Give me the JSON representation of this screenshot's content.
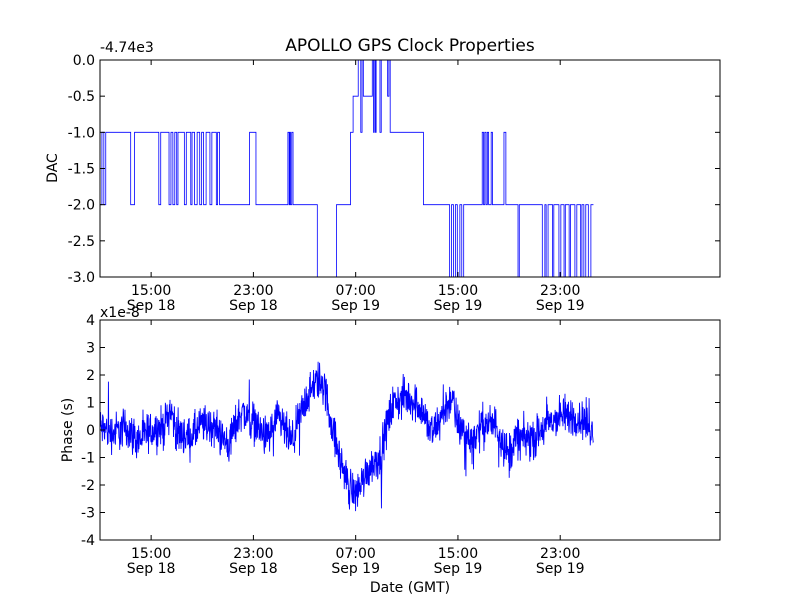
{
  "figure": {
    "title": "APOLLO GPS Clock Properties",
    "xlabel": "Date (GMT)"
  },
  "chart_data": [
    {
      "type": "line",
      "ylabel": "DAC",
      "offset_label": "-4.74e3",
      "xlim": [
        11.0,
        59.5
      ],
      "ylim": [
        -3.0,
        0.0
      ],
      "xticks": [
        {
          "x": 15,
          "time": "15:00",
          "date": "Sep 18"
        },
        {
          "x": 23,
          "time": "23:00",
          "date": "Sep 18"
        },
        {
          "x": 31,
          "time": "07:00",
          "date": "Sep 19"
        },
        {
          "x": 39,
          "time": "15:00",
          "date": "Sep 19"
        },
        {
          "x": 47,
          "time": "23:00",
          "date": "Sep 19"
        }
      ],
      "yticks": [
        "0.0",
        "-0.5",
        "-1.0",
        "-1.5",
        "-2.0",
        "-2.5",
        "-3.0"
      ],
      "color": "#0000ff",
      "series": [
        {
          "steps": [
            [
              11.0,
              -2.0
            ],
            [
              11.15,
              -1.0
            ],
            [
              11.3,
              -2.0
            ],
            [
              11.45,
              -1.0
            ],
            [
              13.4,
              -2.0
            ],
            [
              13.7,
              -1.0
            ],
            [
              15.6,
              -2.0
            ],
            [
              15.75,
              -1.0
            ],
            [
              16.4,
              -2.0
            ],
            [
              16.55,
              -1.0
            ],
            [
              16.7,
              -2.0
            ],
            [
              16.85,
              -1.0
            ],
            [
              17.0,
              -2.0
            ],
            [
              17.1,
              -1.0
            ],
            [
              17.6,
              -2.0
            ],
            [
              17.75,
              -1.0
            ],
            [
              18.1,
              -2.0
            ],
            [
              18.2,
              -1.0
            ],
            [
              18.4,
              -2.0
            ],
            [
              18.6,
              -1.0
            ],
            [
              18.8,
              -2.0
            ],
            [
              18.95,
              -1.0
            ],
            [
              19.1,
              -2.0
            ],
            [
              19.3,
              -1.0
            ],
            [
              19.6,
              -2.0
            ],
            [
              19.75,
              -1.0
            ],
            [
              20.1,
              -2.0
            ],
            [
              20.2,
              -1.0
            ],
            [
              20.35,
              -2.0
            ],
            [
              22.7,
              -1.0
            ],
            [
              23.2,
              -2.0
            ],
            [
              25.7,
              -1.0
            ],
            [
              25.8,
              -2.0
            ],
            [
              25.85,
              -1.0
            ],
            [
              25.9,
              -2.0
            ],
            [
              26.0,
              -1.0
            ],
            [
              26.1,
              -2.0
            ],
            [
              28.0,
              -3.0
            ],
            [
              29.5,
              -2.0
            ],
            [
              30.6,
              -1.0
            ],
            [
              30.8,
              -0.5
            ],
            [
              31.2,
              0.0
            ],
            [
              31.4,
              -1.0
            ],
            [
              31.5,
              0.0
            ],
            [
              31.6,
              -0.5
            ],
            [
              32.3,
              0.0
            ],
            [
              32.4,
              -1.0
            ],
            [
              32.45,
              0.0
            ],
            [
              32.55,
              -1.0
            ],
            [
              32.6,
              0.0
            ],
            [
              32.9,
              -1.0
            ],
            [
              33.0,
              0.0
            ],
            [
              33.5,
              -0.5
            ],
            [
              33.6,
              0.0
            ],
            [
              33.7,
              -1.0
            ],
            [
              35.3,
              -1.0
            ],
            [
              36.3,
              -2.0
            ],
            [
              38.2,
              -2.0
            ],
            [
              38.35,
              -3.0
            ],
            [
              38.5,
              -2.0
            ],
            [
              38.55,
              -2.0
            ],
            [
              38.65,
              -3.0
            ],
            [
              38.8,
              -2.0
            ],
            [
              38.95,
              -3.0
            ],
            [
              39.15,
              -2.0
            ],
            [
              39.3,
              -3.0
            ],
            [
              39.45,
              -2.0
            ],
            [
              40.9,
              -1.0
            ],
            [
              41.0,
              -2.0
            ],
            [
              41.1,
              -1.0
            ],
            [
              41.2,
              -2.0
            ],
            [
              41.3,
              -1.0
            ],
            [
              41.4,
              -2.0
            ],
            [
              41.6,
              -1.0
            ],
            [
              41.7,
              -2.0
            ],
            [
              42.6,
              -1.0
            ],
            [
              42.75,
              -2.0
            ],
            [
              43.6,
              -2.0
            ],
            [
              43.7,
              -3.0
            ],
            [
              43.8,
              -2.0
            ],
            [
              45.6,
              -3.0
            ],
            [
              45.8,
              -2.0
            ],
            [
              45.9,
              -3.0
            ],
            [
              46.05,
              -2.0
            ],
            [
              46.4,
              -3.0
            ],
            [
              46.5,
              -2.0
            ],
            [
              46.9,
              -3.0
            ],
            [
              47.05,
              -2.0
            ],
            [
              47.3,
              -3.0
            ],
            [
              47.4,
              -2.0
            ],
            [
              47.7,
              -3.0
            ],
            [
              47.8,
              -2.0
            ],
            [
              48.0,
              -2.0
            ],
            [
              48.15,
              -3.0
            ],
            [
              48.3,
              -2.0
            ],
            [
              48.5,
              -2.0
            ],
            [
              48.6,
              -3.0
            ],
            [
              48.7,
              -2.0
            ],
            [
              48.85,
              -3.0
            ],
            [
              49.0,
              -2.0
            ],
            [
              49.2,
              -3.0
            ],
            [
              49.4,
              -2.0
            ],
            [
              49.6,
              -2.0
            ]
          ],
          "xmax": 49.6
        }
      ]
    },
    {
      "type": "line",
      "ylabel": "Phase (s)",
      "offset_label": "x1e-8",
      "xlim": [
        11.0,
        59.5
      ],
      "ylim": [
        -4,
        4
      ],
      "xticks": [
        {
          "x": 15,
          "time": "15:00",
          "date": "Sep 18"
        },
        {
          "x": 23,
          "time": "23:00",
          "date": "Sep 18"
        },
        {
          "x": 31,
          "time": "07:00",
          "date": "Sep 19"
        },
        {
          "x": 39,
          "time": "15:00",
          "date": "Sep 19"
        },
        {
          "x": 47,
          "time": "23:00",
          "date": "Sep 19"
        }
      ],
      "yticks": [
        "4",
        "3",
        "2",
        "1",
        "0",
        "-1",
        "-2",
        "-3",
        "-4"
      ],
      "color": "#0000ff",
      "series": [
        {
          "trend": [
            [
              11.0,
              0.1
            ],
            [
              12.0,
              -0.1
            ],
            [
              13.0,
              0.1
            ],
            [
              14.0,
              -0.4
            ],
            [
              15.0,
              0.0
            ],
            [
              16.0,
              0.1
            ],
            [
              16.5,
              0.8
            ],
            [
              17.0,
              -0.1
            ],
            [
              18.0,
              -0.3
            ],
            [
              19.0,
              0.2
            ],
            [
              20.0,
              0.1
            ],
            [
              21.0,
              -0.6
            ],
            [
              22.0,
              0.7
            ],
            [
              23.0,
              0.3
            ],
            [
              24.0,
              -0.3
            ],
            [
              25.0,
              0.4
            ],
            [
              26.0,
              -0.5
            ],
            [
              27.0,
              1.0
            ],
            [
              28.0,
              1.8
            ],
            [
              28.5,
              1.7
            ],
            [
              29.0,
              0.5
            ],
            [
              29.5,
              -0.6
            ],
            [
              30.0,
              -1.4
            ],
            [
              30.5,
              -2.1
            ],
            [
              31.0,
              -2.3
            ],
            [
              31.5,
              -1.9
            ],
            [
              32.0,
              -1.4
            ],
            [
              33.0,
              -0.9
            ],
            [
              33.5,
              0.3
            ],
            [
              34.0,
              1.0
            ],
            [
              35.0,
              1.2
            ],
            [
              36.0,
              0.9
            ],
            [
              37.0,
              -0.2
            ],
            [
              38.0,
              0.8
            ],
            [
              38.5,
              1.2
            ],
            [
              39.0,
              0.2
            ],
            [
              40.0,
              -0.4
            ],
            [
              41.0,
              0.2
            ],
            [
              42.0,
              0.2
            ],
            [
              43.0,
              -1.0
            ],
            [
              43.5,
              -0.3
            ],
            [
              44.0,
              -0.3
            ],
            [
              45.0,
              -0.3
            ],
            [
              46.0,
              0.2
            ],
            [
              47.0,
              0.5
            ],
            [
              48.0,
              0.5
            ],
            [
              49.0,
              0.3
            ],
            [
              49.6,
              -0.1
            ]
          ],
          "noise": 0.45,
          "points": 1700,
          "xmax": 49.6
        }
      ]
    }
  ]
}
